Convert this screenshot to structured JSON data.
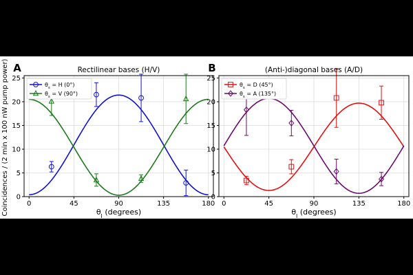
{
  "figure": {
    "ylabel": "Coincidences / (2 min x 100 nW pump power)",
    "xlabel": "θ_I (degrees)"
  },
  "chart_data": [
    {
      "type": "line",
      "panel_label": "A",
      "title": "Rectilinear bases (H/V)",
      "xlabel": "θ_I (degrees)",
      "xlim": [
        -5,
        185
      ],
      "ylim": [
        0,
        25.5
      ],
      "xticks": [
        0,
        45,
        90,
        135,
        180
      ],
      "yticks": [
        0,
        5,
        10,
        15,
        20,
        25
      ],
      "grid": true,
      "legend_position": "top-left",
      "series": [
        {
          "name": "θ_s = H (0°)",
          "color": "#1010d0",
          "marker": "circle",
          "curve": {
            "offset": 10.9,
            "amplitude": -10.5,
            "phase": 0
          },
          "points": [
            {
              "x": 22.5,
              "y": 6.3,
              "err": 1.1
            },
            {
              "x": 67.5,
              "y": 21.5,
              "err": 2.5
            },
            {
              "x": 112.5,
              "y": 20.8,
              "err": 5.0
            },
            {
              "x": 157.5,
              "y": 2.9,
              "err": 2.7
            }
          ]
        },
        {
          "name": "θ_s = V (90°)",
          "color": "#1a7a1a",
          "marker": "triangle",
          "curve": {
            "offset": 10.4,
            "amplitude": 10.1,
            "phase": 0
          },
          "points": [
            {
              "x": 22.5,
              "y": 20.1,
              "err": 3.0
            },
            {
              "x": 67.5,
              "y": 3.5,
              "err": 1.3
            },
            {
              "x": 112.5,
              "y": 3.8,
              "err": 0.8
            },
            {
              "x": 157.5,
              "y": 20.6,
              "err": 5.2
            }
          ]
        }
      ]
    },
    {
      "type": "line",
      "panel_label": "B",
      "title": "(Anti-)diagonal bases (A/D)",
      "xlabel": "θ_I (degrees)",
      "xlim": [
        -5,
        185
      ],
      "ylim": [
        0,
        25.5
      ],
      "xticks": [
        0,
        45,
        90,
        135,
        180
      ],
      "yticks": [
        0,
        5,
        10,
        15,
        20,
        25
      ],
      "grid": true,
      "legend_position": "top-left",
      "series": [
        {
          "name": "θ_s = D (45°)",
          "color": "#e01010",
          "marker": "square",
          "curve": {
            "offset": 10.5,
            "amplitude": -9.2,
            "phase": 45
          },
          "points": [
            {
              "x": 22.5,
              "y": 3.4,
              "err": 0.9
            },
            {
              "x": 67.5,
              "y": 6.3,
              "err": 1.5
            },
            {
              "x": 112.5,
              "y": 20.8,
              "err": 6.2
            },
            {
              "x": 157.5,
              "y": 19.8,
              "err": 3.5
            }
          ]
        },
        {
          "name": "θ_s = A (135°)",
          "color": "#6a0a6a",
          "marker": "diamond",
          "curve": {
            "offset": 10.7,
            "amplitude": 10.0,
            "phase": 45
          },
          "points": [
            {
              "x": 22.5,
              "y": 18.3,
              "err": 5.4
            },
            {
              "x": 67.5,
              "y": 15.5,
              "err": 2.7
            },
            {
              "x": 112.5,
              "y": 5.3,
              "err": 2.6
            },
            {
              "x": 157.5,
              "y": 3.7,
              "err": 1.4
            }
          ]
        }
      ]
    }
  ]
}
